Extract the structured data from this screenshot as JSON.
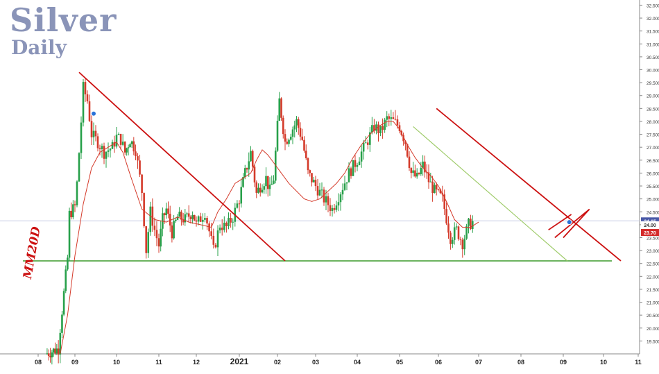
{
  "header": {
    "title": "Silver",
    "subtitle": "Daily"
  },
  "ma_label": "MM20D",
  "chart_data": {
    "type": "candlestick",
    "title": "Silver",
    "subtitle": "Daily",
    "ylim": [
      19.0,
      32.7
    ],
    "y_ticks": [
      "19.500",
      "20.000",
      "20.500",
      "21.000",
      "21.500",
      "22.000",
      "22.500",
      "23.000",
      "23.500",
      "24.000",
      "24.500",
      "25.000",
      "25.500",
      "26.000",
      "26.500",
      "27.000",
      "27.500",
      "28.000",
      "28.500",
      "29.000",
      "29.500",
      "30.000",
      "30.500",
      "31.000",
      "31.500",
      "32.000",
      "32.500"
    ],
    "x_ticks": [
      "08",
      "09",
      "10",
      "11",
      "12",
      "2021",
      "02",
      "03",
      "04",
      "05",
      "06",
      "07",
      "08",
      "09",
      "10",
      "11"
    ],
    "price_labels": [
      {
        "value": 24.15,
        "text": "24.15",
        "color": "#4a5aa8"
      },
      {
        "value": 24.0,
        "text": "24.00",
        "color": "#ffffff"
      },
      {
        "value": 23.7,
        "text": "23.70",
        "color": "#d42a2a"
      }
    ],
    "support_level": 22.6,
    "current_level": 24.15,
    "series_path": [
      [
        0.2,
        19.0
      ],
      [
        0.55,
        19.2
      ],
      [
        0.6,
        20.0
      ],
      [
        0.8,
        22.7
      ],
      [
        0.85,
        24.4
      ],
      [
        1.0,
        24.7
      ],
      [
        1.05,
        25.6
      ],
      [
        1.15,
        28.0
      ],
      [
        1.2,
        29.3
      ],
      [
        1.3,
        28.8
      ],
      [
        1.4,
        27.5
      ],
      [
        1.55,
        27.2
      ],
      [
        1.7,
        26.8
      ],
      [
        1.9,
        27.0
      ],
      [
        2.0,
        27.4
      ],
      [
        2.1,
        27.3
      ],
      [
        2.2,
        26.8
      ],
      [
        2.32,
        27.3
      ],
      [
        2.45,
        26.9
      ],
      [
        2.6,
        25.3
      ],
      [
        2.7,
        23.0
      ],
      [
        2.8,
        24.5
      ],
      [
        2.9,
        23.8
      ],
      [
        3.0,
        23.2
      ],
      [
        3.1,
        24.2
      ],
      [
        3.2,
        24.6
      ],
      [
        3.35,
        23.7
      ],
      [
        3.5,
        24.3
      ],
      [
        3.7,
        24.2
      ],
      [
        3.9,
        24.5
      ],
      [
        4.0,
        24.0
      ],
      [
        4.2,
        24.5
      ],
      [
        4.4,
        23.0
      ],
      [
        4.55,
        24.0
      ],
      [
        4.7,
        23.9
      ],
      [
        4.85,
        24.3
      ],
      [
        5.0,
        25.0
      ],
      [
        5.15,
        26.0
      ],
      [
        5.3,
        26.8
      ],
      [
        5.45,
        25.2
      ],
      [
        5.55,
        25.5
      ],
      [
        5.7,
        25.8
      ],
      [
        5.8,
        25.3
      ],
      [
        5.9,
        25.8
      ],
      [
        6.05,
        28.8
      ],
      [
        6.2,
        27.2
      ],
      [
        6.35,
        27.6
      ],
      [
        6.5,
        28.0
      ],
      [
        6.65,
        27.3
      ],
      [
        6.8,
        26.0
      ],
      [
        7.0,
        25.5
      ],
      [
        7.2,
        25.0
      ],
      [
        7.4,
        24.6
      ],
      [
        7.6,
        25.3
      ],
      [
        7.8,
        26.0
      ],
      [
        8.0,
        26.5
      ],
      [
        8.2,
        27.1
      ],
      [
        8.4,
        27.8
      ],
      [
        8.55,
        27.6
      ],
      [
        8.7,
        28.1
      ],
      [
        8.85,
        28.0
      ],
      [
        9.0,
        27.8
      ],
      [
        9.15,
        27.2
      ],
      [
        9.3,
        26.0
      ],
      [
        9.45,
        25.8
      ],
      [
        9.6,
        26.3
      ],
      [
        9.75,
        25.7
      ],
      [
        9.9,
        25.3
      ],
      [
        10.1,
        25.0
      ],
      [
        10.3,
        23.5
      ],
      [
        10.45,
        23.8
      ],
      [
        10.6,
        23.3
      ],
      [
        10.75,
        24.0
      ],
      [
        10.85,
        24.1
      ]
    ],
    "ma20": [
      [
        0.6,
        19.0
      ],
      [
        0.8,
        20.5
      ],
      [
        1.0,
        22.8
      ],
      [
        1.2,
        24.8
      ],
      [
        1.4,
        26.2
      ],
      [
        1.6,
        26.8
      ],
      [
        1.8,
        27.0
      ],
      [
        2.0,
        27.2
      ],
      [
        2.15,
        26.8
      ],
      [
        2.35,
        25.8
      ],
      [
        2.6,
        24.6
      ],
      [
        2.9,
        24.2
      ],
      [
        3.2,
        24.1
      ],
      [
        3.5,
        24.3
      ],
      [
        3.8,
        24.1
      ],
      [
        4.1,
        24.0
      ],
      [
        4.35,
        23.9
      ],
      [
        4.5,
        24.5
      ],
      [
        4.7,
        25.0
      ],
      [
        4.9,
        25.6
      ],
      [
        5.1,
        25.8
      ],
      [
        5.3,
        26.0
      ],
      [
        5.45,
        26.5
      ],
      [
        5.6,
        26.9
      ],
      [
        5.75,
        26.7
      ],
      [
        5.9,
        26.4
      ],
      [
        6.1,
        26.0
      ],
      [
        6.3,
        25.6
      ],
      [
        6.5,
        25.3
      ],
      [
        6.7,
        25.0
      ],
      [
        6.9,
        24.9
      ],
      [
        7.1,
        25.0
      ],
      [
        7.3,
        25.3
      ],
      [
        7.5,
        25.6
      ],
      [
        7.7,
        26.0
      ],
      [
        7.9,
        26.6
      ],
      [
        8.1,
        27.1
      ],
      [
        8.3,
        27.5
      ],
      [
        8.5,
        27.8
      ],
      [
        8.7,
        28.0
      ],
      [
        8.85,
        28.0
      ],
      [
        9.0,
        27.7
      ],
      [
        9.2,
        27.1
      ],
      [
        9.4,
        26.6
      ],
      [
        9.6,
        26.2
      ],
      [
        9.8,
        25.9
      ],
      [
        10.0,
        25.5
      ],
      [
        10.2,
        24.9
      ],
      [
        10.4,
        24.2
      ],
      [
        10.6,
        23.9
      ],
      [
        10.8,
        23.9
      ],
      [
        11.0,
        24.1
      ]
    ],
    "trendlines": [
      {
        "color": "#cc1111",
        "from": [
          1.1,
          29.9
        ],
        "to": [
          6.2,
          22.6
        ]
      },
      {
        "color": "#cc1111",
        "from": [
          9.95,
          28.5
        ],
        "to": [
          14.5,
          22.6
        ]
      },
      {
        "color": "#9fcb6a",
        "from": [
          9.35,
          27.8
        ],
        "to": [
          13.1,
          22.6
        ]
      },
      {
        "color": "#cc1111",
        "from": [
          12.65,
          23.8
        ],
        "to": [
          13.2,
          24.4
        ]
      },
      {
        "color": "#cc1111",
        "from": [
          12.8,
          23.5
        ],
        "to": [
          13.65,
          24.6
        ]
      },
      {
        "color": "#cc1111",
        "from": [
          13.0,
          23.5
        ],
        "to": [
          13.65,
          24.6
        ]
      }
    ],
    "markers": [
      {
        "x": 1.45,
        "y": 28.3,
        "color": "#2a72d8"
      },
      {
        "x": 13.15,
        "y": 24.1,
        "color": "#2a72d8"
      }
    ]
  },
  "colors": {
    "up": "#27a04a",
    "down": "#d43a2a",
    "trend_red": "#cc1111",
    "support_green": "#3a9a2a",
    "title_color": "#8a94b8"
  }
}
